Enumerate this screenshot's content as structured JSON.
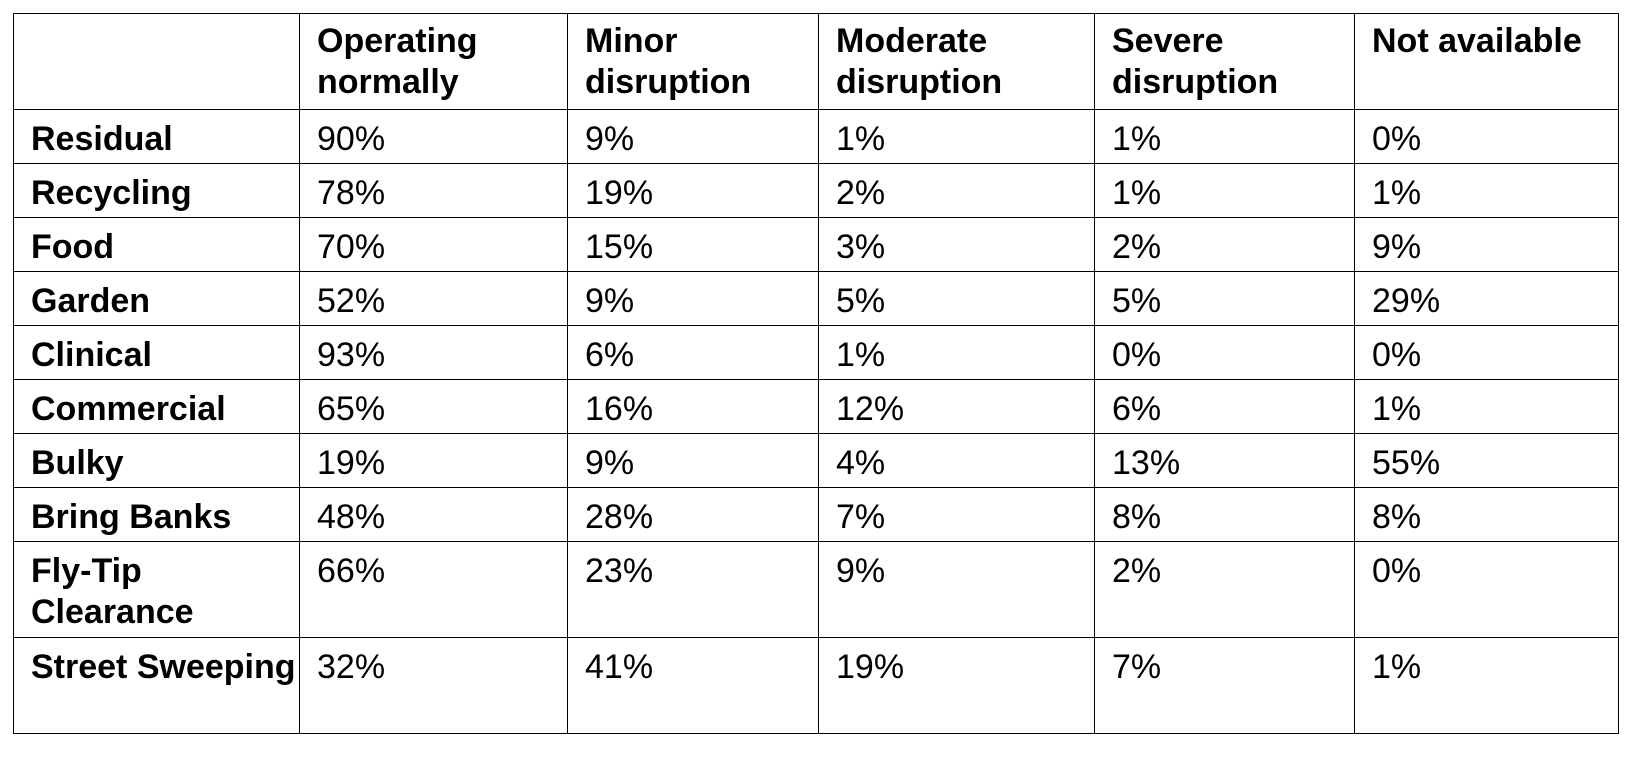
{
  "table": {
    "columns": [
      "",
      "Operating normally",
      "Minor disruption",
      "Moderate disruption",
      "Severe disruption",
      "Not available"
    ],
    "rows": [
      {
        "service": "Residual",
        "values": [
          "90%",
          "9%",
          "1%",
          "1%",
          "0%"
        ]
      },
      {
        "service": "Recycling",
        "values": [
          "78%",
          "19%",
          "2%",
          "1%",
          "1%"
        ]
      },
      {
        "service": "Food",
        "values": [
          "70%",
          "15%",
          "3%",
          "2%",
          "9%"
        ]
      },
      {
        "service": "Garden",
        "values": [
          "52%",
          "9%",
          "5%",
          "5%",
          "29%"
        ]
      },
      {
        "service": "Clinical",
        "values": [
          "93%",
          "6%",
          "1%",
          "0%",
          "0%"
        ]
      },
      {
        "service": "Commercial",
        "values": [
          "65%",
          "16%",
          "12%",
          "6%",
          "1%"
        ]
      },
      {
        "service": "Bulky",
        "values": [
          "19%",
          "9%",
          "4%",
          "13%",
          "55%"
        ]
      },
      {
        "service": "Bring Banks",
        "values": [
          "48%",
          "28%",
          "7%",
          "8%",
          "8%"
        ]
      },
      {
        "service": "Fly-Tip Clearance",
        "values": [
          "66%",
          "23%",
          "9%",
          "2%",
          "0%"
        ]
      },
      {
        "service": "Street Sweeping",
        "values": [
          "32%",
          "41%",
          "19%",
          "7%",
          "1%"
        ]
      }
    ]
  }
}
